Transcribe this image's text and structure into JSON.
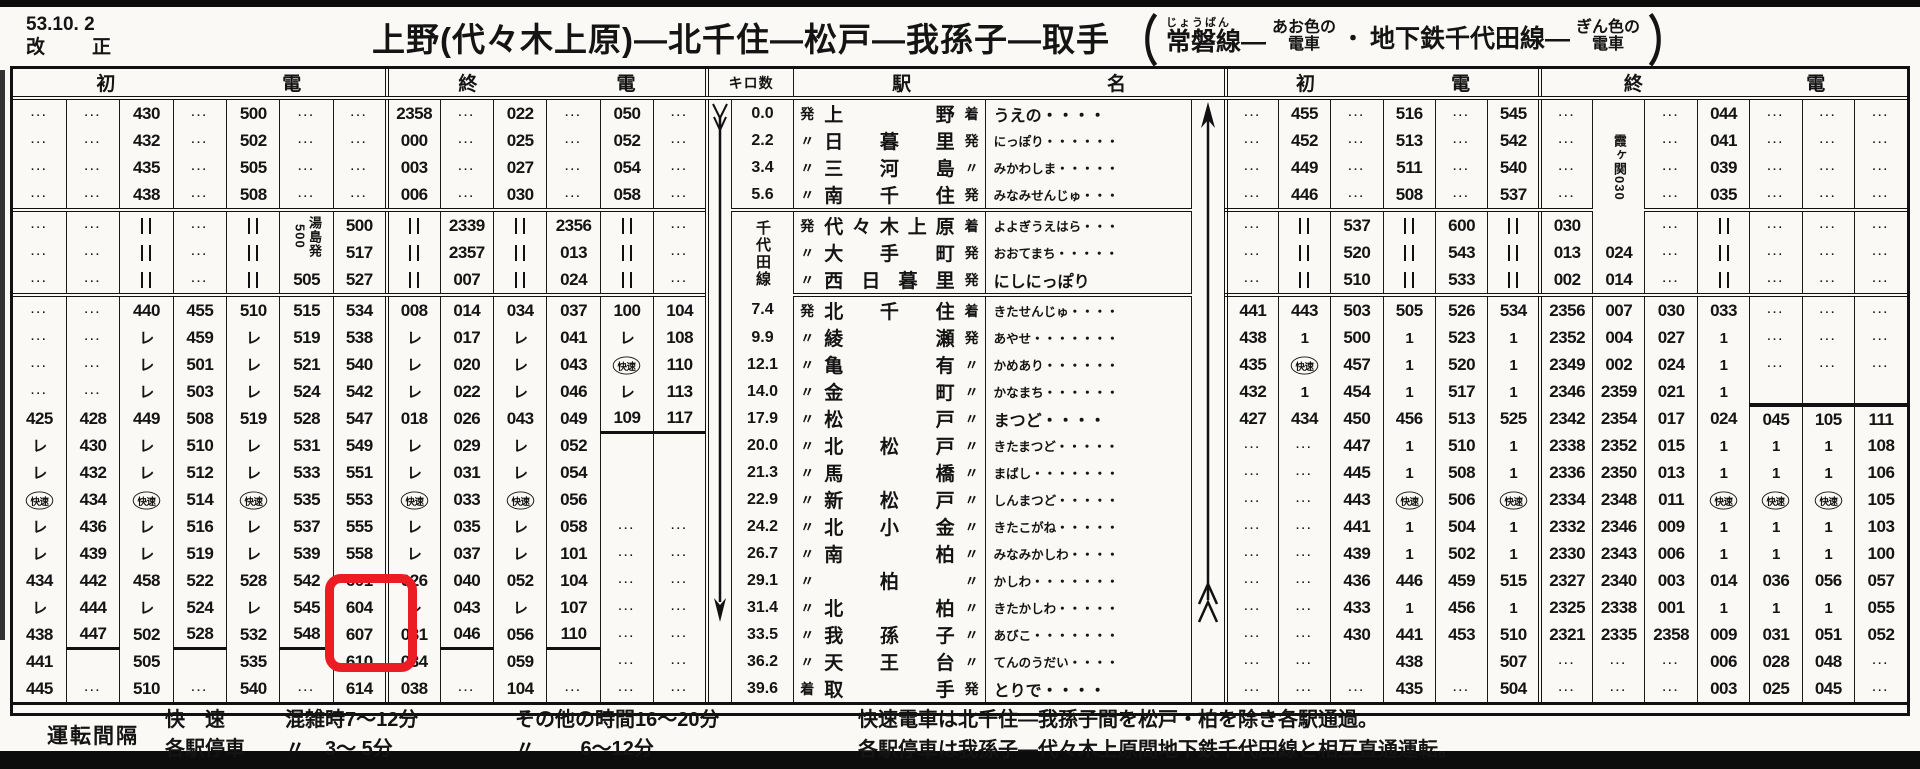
{
  "header": {
    "date_line1": "53.10. 2",
    "date_line2": "改　正",
    "title": "上野(代々木上原)—北千住—松戸—我孫子—取手",
    "furigana": "じょうばん",
    "paren_open": "（",
    "subtitle1": "常磐線—",
    "stack1a": "あお色の",
    "stack1b": "電車",
    "dot": "・",
    "subtitle2": "地下鉄千代田線—",
    "stack2a": "ぎん色の",
    "stack2b": "電車",
    "paren_close": "）"
  },
  "block_headers": {
    "first": "初",
    "last": "終",
    "den": "電",
    "km": "キロ数",
    "station_a": "駅",
    "station_b": "名"
  },
  "stations": [
    {
      "km": "0.0",
      "dep": "発",
      "name": "上野",
      "arr": "着",
      "kana": "うえの・・・・",
      "big": true
    },
    {
      "km": "2.2",
      "dep": "〃",
      "name": "日暮里",
      "arr": "発",
      "kana": "にっぽり・・・・・・",
      "big": false
    },
    {
      "km": "3.4",
      "dep": "〃",
      "name": "三河島",
      "arr": "〃",
      "kana": "みかわしま・・・・・",
      "big": false
    },
    {
      "km": "5.6",
      "dep": "〃",
      "name": "南千住",
      "arr": "発",
      "kana": "みなみせんじゅ・・・",
      "big": false
    },
    {
      "km": "§千代田線||3",
      "dep": "発",
      "name": "代々木上原",
      "arr": "着",
      "kana": "よよぎうえはら・・・",
      "big": false
    },
    {
      "km": "@skip",
      "dep": "〃",
      "name": "大手町",
      "arr": "発",
      "kana": "おおてまち・・・・・",
      "big": false
    },
    {
      "km": "@skip",
      "dep": "〃",
      "name": "西日暮里",
      "arr": "発",
      "kana": "にしにっぽり",
      "big": true
    },
    {
      "km": "7.4",
      "dep": "発",
      "name": "北千住",
      "arr": "着",
      "kana": "きたせんじゅ・・・・",
      "big": false
    },
    {
      "km": "9.9",
      "dep": "〃",
      "name": "綾瀬",
      "arr": "発",
      "kana": "あやせ・・・・・・・",
      "big": false
    },
    {
      "km": "12.1",
      "dep": "〃",
      "name": "亀有",
      "arr": "〃",
      "kana": "かめあり・・・・・・",
      "big": false
    },
    {
      "km": "14.0",
      "dep": "〃",
      "name": "金町",
      "arr": "〃",
      "kana": "かなまち・・・・・・",
      "big": false
    },
    {
      "km": "17.9",
      "dep": "〃",
      "name": "松戸",
      "arr": "〃",
      "kana": "まつど・・・・",
      "big": true
    },
    {
      "km": "20.0",
      "dep": "〃",
      "name": "北松戸",
      "arr": "〃",
      "kana": "きたまつど・・・・・",
      "big": false
    },
    {
      "km": "21.3",
      "dep": "〃",
      "name": "馬橋",
      "arr": "〃",
      "kana": "まばし・・・・・・・",
      "big": false
    },
    {
      "km": "22.9",
      "dep": "〃",
      "name": "新松戸",
      "arr": "〃",
      "kana": "しんまつど・・・・・",
      "big": false
    },
    {
      "km": "24.2",
      "dep": "〃",
      "name": "北小金",
      "arr": "〃",
      "kana": "きたこがね・・・・・",
      "big": false
    },
    {
      "km": "26.7",
      "dep": "〃",
      "name": "南柏",
      "arr": "〃",
      "kana": "みなみかしわ・・・・",
      "big": false
    },
    {
      "km": "29.1",
      "dep": "〃",
      "name": "柏",
      "arr": "〃",
      "kana": "かしわ・・・・・・・",
      "big": false
    },
    {
      "km": "31.4",
      "dep": "〃",
      "name": "北柏",
      "arr": "〃",
      "kana": "きたかしわ・・・・・",
      "big": false
    },
    {
      "km": "33.5",
      "dep": "〃",
      "name": "我孫子",
      "arr": "〃",
      "kana": "あびこ・・・・・・・",
      "big": false
    },
    {
      "km": "36.2",
      "dep": "〃",
      "name": "天王台",
      "arr": "〃",
      "kana": "てんのうだい・・・・",
      "big": false
    },
    {
      "km": "39.6",
      "dep": "着",
      "name": "取手",
      "arr": "発",
      "kana": "とりで・・・・",
      "big": true
    }
  ],
  "left_first": [
    [
      "···",
      "···",
      "430",
      "···",
      "500",
      "···",
      "···"
    ],
    [
      "···",
      "···",
      "432",
      "···",
      "502",
      "···",
      "···"
    ],
    [
      "···",
      "···",
      "435",
      "···",
      "505",
      "···",
      "···"
    ],
    [
      "···",
      "···",
      "438",
      "···",
      "508",
      "···",
      "···"
    ],
    [
      "···",
      "···",
      "‖",
      "···",
      "‖",
      "§湯島発|500|2",
      "500"
    ],
    [
      "···",
      "···",
      "‖",
      "···",
      "‖",
      "@skip",
      "517"
    ],
    [
      "···",
      "···",
      "‖",
      "···",
      "‖",
      "505",
      "527"
    ],
    [
      "···",
      "···",
      "440",
      "455",
      "510",
      "515",
      "534"
    ],
    [
      "···",
      "···",
      "レ",
      "459",
      "レ",
      "519",
      "538"
    ],
    [
      "···",
      "···",
      "レ",
      "501",
      "レ",
      "521",
      "540"
    ],
    [
      "···",
      "···",
      "レ",
      "503",
      "レ",
      "524",
      "542"
    ],
    [
      "425",
      "428",
      "449",
      "508",
      "519",
      "528",
      "547"
    ],
    [
      "レ",
      "430",
      "レ",
      "510",
      "レ",
      "531",
      "549"
    ],
    [
      "レ",
      "432",
      "レ",
      "512",
      "レ",
      "533",
      "551"
    ],
    [
      "快速",
      "434",
      "快速",
      "514",
      "快速",
      "535",
      "553"
    ],
    [
      "レ",
      "436",
      "レ",
      "516",
      "レ",
      "537",
      "555"
    ],
    [
      "レ",
      "439",
      "レ",
      "519",
      "レ",
      "539",
      "558"
    ],
    [
      "434",
      "442",
      "458",
      "522",
      "528",
      "542",
      "601"
    ],
    [
      "レ",
      "444",
      "レ",
      "524",
      "レ",
      "545",
      "604"
    ],
    [
      "438",
      "447_",
      "502",
      "528_",
      "532",
      "548_",
      "607"
    ],
    [
      "441",
      "",
      "505",
      "",
      "535",
      "",
      "610"
    ],
    [
      "445",
      "···",
      "510",
      "···",
      "540",
      "···",
      "614"
    ]
  ],
  "left_last": [
    [
      "2358",
      "···",
      "022",
      "···",
      "050",
      "···"
    ],
    [
      "000",
      "···",
      "025",
      "···",
      "052",
      "···"
    ],
    [
      "003",
      "···",
      "027",
      "···",
      "054",
      "···"
    ],
    [
      "006",
      "···",
      "030",
      "···",
      "058",
      "···"
    ],
    [
      "‖",
      "2339",
      "‖",
      "2356",
      "‖",
      "···"
    ],
    [
      "‖",
      "2357",
      "‖",
      "013",
      "‖",
      "···"
    ],
    [
      "‖",
      "007",
      "‖",
      "024",
      "‖",
      "···"
    ],
    [
      "008",
      "014",
      "034",
      "037",
      "100",
      "104"
    ],
    [
      "レ",
      "017",
      "レ",
      "041",
      "レ",
      "108"
    ],
    [
      "レ",
      "020",
      "レ",
      "043",
      "快速",
      "110"
    ],
    [
      "レ",
      "022",
      "レ",
      "046",
      "レ",
      "113"
    ],
    [
      "018",
      "026",
      "043",
      "049",
      "109_",
      "117_"
    ],
    [
      "レ",
      "029",
      "レ",
      "052",
      "",
      ""
    ],
    [
      "レ",
      "031",
      "レ",
      "054",
      "",
      ""
    ],
    [
      "快速",
      "033",
      "快速",
      "056",
      "",
      ""
    ],
    [
      "レ",
      "035",
      "レ",
      "058",
      "···",
      "···"
    ],
    [
      "レ",
      "037",
      "レ",
      "101",
      "···",
      "···"
    ],
    [
      "026",
      "040",
      "052",
      "104",
      "···",
      "···"
    ],
    [
      "レ",
      "043",
      "レ",
      "107",
      "···",
      "···"
    ],
    [
      "031",
      "046_",
      "056",
      "110_",
      "···",
      "···"
    ],
    [
      "034",
      "",
      "059",
      "",
      "···",
      "···"
    ],
    [
      "038",
      "···",
      "104",
      "···",
      "···",
      "···"
    ]
  ],
  "right_first": [
    [
      "···",
      "455",
      "···",
      "516",
      "···",
      "545"
    ],
    [
      "···",
      "452",
      "···",
      "513",
      "···",
      "542"
    ],
    [
      "···",
      "449",
      "···",
      "511",
      "···",
      "540"
    ],
    [
      "···",
      "446",
      "···",
      "508",
      "···",
      "537"
    ],
    [
      "···",
      "‖",
      "537",
      "‖",
      "600",
      "‖"
    ],
    [
      "···",
      "‖",
      "520",
      "‖",
      "543",
      "‖"
    ],
    [
      "···",
      "‖",
      "510",
      "‖",
      "533",
      "‖"
    ],
    [
      "441",
      "443",
      "503",
      "505",
      "526",
      "534"
    ],
    [
      "438",
      "1",
      "500",
      "1",
      "523",
      "1"
    ],
    [
      "435",
      "快速",
      "457",
      "1",
      "520",
      "1"
    ],
    [
      "432",
      "1",
      "454",
      "1",
      "517",
      "1"
    ],
    [
      "427",
      "434",
      "450",
      "456",
      "513",
      "525"
    ],
    [
      "···",
      "···",
      "447",
      "1",
      "510",
      "1"
    ],
    [
      "···",
      "···",
      "445",
      "1",
      "508",
      "1"
    ],
    [
      "···",
      "···",
      "443",
      "快速",
      "506",
      "快速"
    ],
    [
      "···",
      "···",
      "441",
      "1",
      "504",
      "1"
    ],
    [
      "···",
      "···",
      "439",
      "1",
      "502",
      "1"
    ],
    [
      "···",
      "···",
      "436",
      "446",
      "459",
      "515"
    ],
    [
      "···",
      "···",
      "433",
      "1",
      "456",
      "1"
    ],
    [
      "···",
      "···",
      "430",
      "441",
      "453",
      "510"
    ],
    [
      "···",
      "···",
      "",
      "438",
      "",
      "507"
    ],
    [
      "···",
      "···",
      "···",
      "435",
      "···",
      "504"
    ]
  ],
  "right_last": [
    [
      "···",
      "§霞ヶ関|030|5",
      "···",
      "044",
      "···",
      "···",
      "···"
    ],
    [
      "···",
      "@skip",
      "···",
      "041",
      "···",
      "···",
      "···"
    ],
    [
      "···",
      "@skip",
      "···",
      "039",
      "···",
      "···",
      "···"
    ],
    [
      "···",
      "@skip",
      "···",
      "035",
      "···",
      "···",
      "···"
    ],
    [
      "030",
      "@skip",
      "···",
      "‖",
      "···",
      "···",
      "···"
    ],
    [
      "013",
      "024",
      "···",
      "‖",
      "···",
      "···",
      "···"
    ],
    [
      "002",
      "014",
      "···",
      "‖",
      "···",
      "···",
      "···"
    ],
    [
      "2356",
      "007",
      "030",
      "033",
      "···",
      "···",
      "···"
    ],
    [
      "2352",
      "004",
      "027",
      "1",
      "···",
      "···",
      "···"
    ],
    [
      "2349",
      "002",
      "024",
      "1",
      "···",
      "···",
      "···"
    ],
    [
      "2346",
      "2359",
      "021",
      "1",
      "",
      "",
      ""
    ],
    [
      "2342",
      "2354",
      "017",
      "024",
      "^045",
      "^105",
      "^111"
    ],
    [
      "2338",
      "2352",
      "015",
      "1",
      "1",
      "1",
      "108"
    ],
    [
      "2336",
      "2350",
      "013",
      "1",
      "1",
      "1",
      "106"
    ],
    [
      "2334",
      "2348",
      "011",
      "快速",
      "快速",
      "快速",
      "105"
    ],
    [
      "2332",
      "2346",
      "009",
      "1",
      "1",
      "1",
      "103"
    ],
    [
      "2330",
      "2343",
      "006",
      "1",
      "1",
      "1",
      "100"
    ],
    [
      "2327",
      "2340",
      "003",
      "014",
      "036",
      "056",
      "057"
    ],
    [
      "2325",
      "2338",
      "001",
      "1",
      "1",
      "1",
      "055"
    ],
    [
      "2321",
      "2335",
      "2358",
      "009",
      "031",
      "051",
      "052"
    ],
    [
      "···",
      "···",
      "···",
      "006",
      "028",
      "048",
      "···"
    ],
    [
      "···",
      "···",
      "···",
      "003",
      "025",
      "045",
      "···"
    ]
  ],
  "operation": {
    "label": "運転間隔",
    "rows": [
      {
        "type": "快　速",
        "peak": "混雑時7〜12分",
        "other": "その他の時間16〜20分"
      },
      {
        "type": "各駅停車",
        "peak": "〃　3〜 5分",
        "other": "〃　　 6〜12分"
      }
    ],
    "remarks": [
      "快速電車は北千住—我孫子間を松戸・柏を除き各駅通過。",
      "各駅停車は我孫子—代々木上原間地下鉄千代田線と相互直通運転。"
    ]
  },
  "highlight": {
    "color": "#ec1c24",
    "highlighted_values": "610・614"
  },
  "direction_arrows": {
    "left_block": "down",
    "right_block": "up"
  }
}
